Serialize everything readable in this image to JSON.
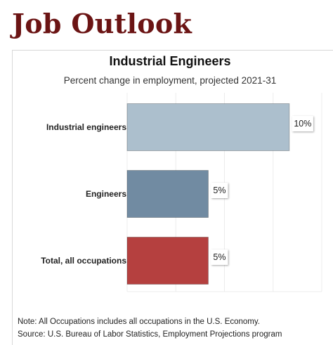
{
  "page": {
    "heading": "Job Outlook",
    "note": "Note: All Occupations includes all occupations in the U.S. Economy.",
    "source": "Source: U.S. Bureau of Labor Statistics, Employment Projections program"
  },
  "chart_data": {
    "type": "bar",
    "orientation": "horizontal",
    "title": "Industrial Engineers",
    "subtitle": "Percent change in employment, projected 2021-31",
    "categories": [
      "Industrial engineers",
      "Engineers",
      "Total, all occupations"
    ],
    "values": [
      10,
      5,
      5
    ],
    "value_labels": [
      "10%",
      "5%",
      "5%"
    ],
    "colors": [
      "#acbfcd",
      "#718ba2",
      "#b5403f"
    ],
    "xlim": [
      0,
      12
    ],
    "grid": true,
    "legend": "none"
  }
}
